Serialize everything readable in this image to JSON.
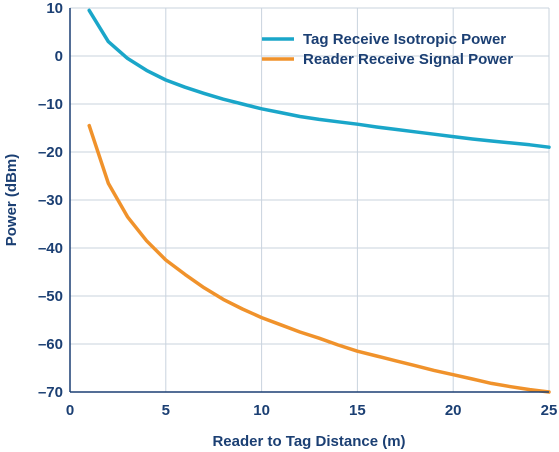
{
  "chart_data": {
    "type": "line",
    "title": "",
    "xlabel": "Reader to Tag Distance (m)",
    "ylabel": "Power (dBm)",
    "xlim": [
      0,
      25
    ],
    "ylim": [
      -70,
      10
    ],
    "xticks": [
      0,
      5,
      10,
      15,
      20,
      25
    ],
    "yticks": [
      10,
      0,
      -10,
      -20,
      -30,
      -40,
      -50,
      -60,
      -70
    ],
    "xtick_labels": [
      "0",
      "5",
      "10",
      "15",
      "20",
      "25"
    ],
    "ytick_labels": [
      "10",
      "0",
      "–10",
      "–20",
      "–30",
      "–40",
      "–50",
      "–60",
      "–70"
    ],
    "grid": true,
    "legend_position": "top-right",
    "series": [
      {
        "name": "Tag Receive Isotropic Power",
        "color": "#1aa6c9",
        "x": [
          1,
          2,
          3,
          4,
          5,
          6,
          7,
          8,
          9,
          10,
          11,
          12,
          13,
          14,
          15,
          16,
          17,
          18,
          19,
          20,
          21,
          22,
          23,
          24,
          25
        ],
        "y": [
          9.5,
          3.0,
          -0.5,
          -3.0,
          -5.0,
          -6.5,
          -7.8,
          -9.0,
          -10.0,
          -11.0,
          -11.8,
          -12.6,
          -13.2,
          -13.7,
          -14.2,
          -14.8,
          -15.3,
          -15.8,
          -16.3,
          -16.8,
          -17.3,
          -17.7,
          -18.1,
          -18.5,
          -19.0
        ]
      },
      {
        "name": "Reader Receive Signal Power",
        "color": "#f0922b",
        "x": [
          1,
          2,
          3,
          4,
          5,
          6,
          7,
          8,
          9,
          10,
          11,
          12,
          13,
          14,
          15,
          16,
          17,
          18,
          19,
          20,
          21,
          22,
          23,
          24,
          25
        ],
        "y": [
          -14.5,
          -26.5,
          -33.5,
          -38.5,
          -42.5,
          -45.5,
          -48.3,
          -50.7,
          -52.7,
          -54.5,
          -56.0,
          -57.5,
          -58.8,
          -60.2,
          -61.5,
          -62.5,
          -63.5,
          -64.5,
          -65.5,
          -66.4,
          -67.3,
          -68.2,
          -68.9,
          -69.5,
          -70.0
        ]
      }
    ]
  }
}
